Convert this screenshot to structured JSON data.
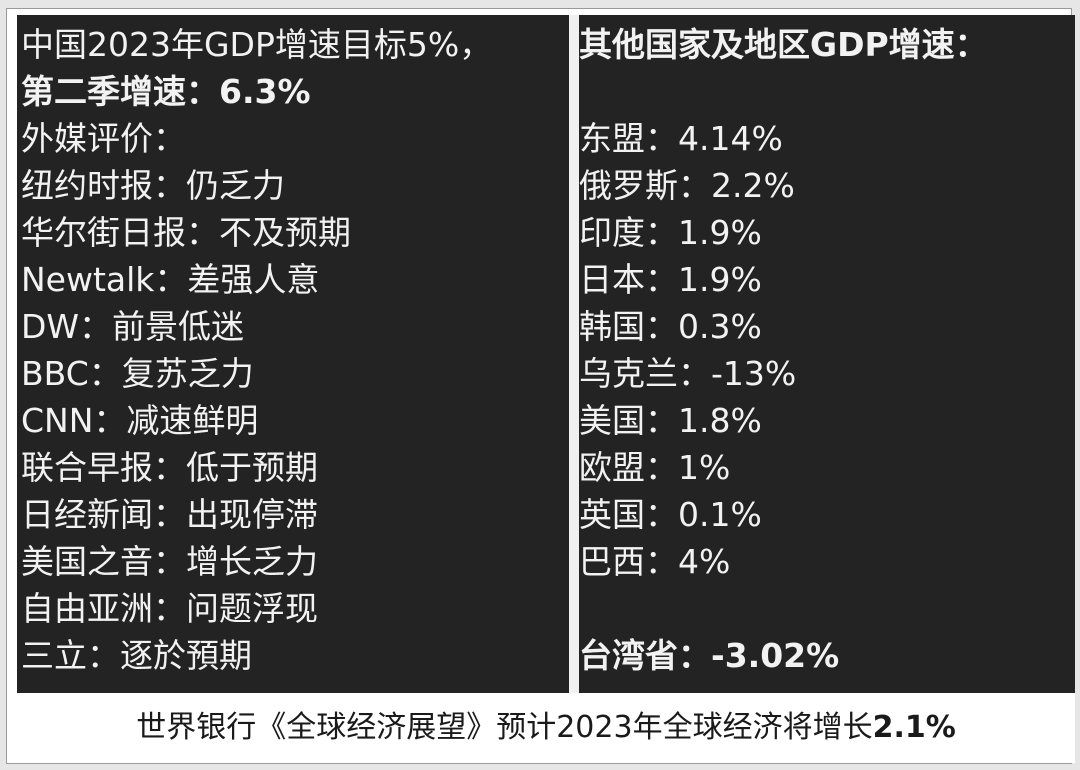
{
  "left": {
    "line1": "中国2023年GDP增速目标5%，",
    "line2": "第二季增速：6.3%",
    "line3": "外媒评价：",
    "reviews": [
      "纽约时报：仍乏力",
      "华尔街日报：不及预期",
      "Newtalk：差强人意",
      "DW：前景低迷",
      "BBC：复苏乏力",
      "CNN：减速鲜明",
      "联合早报：低于预期",
      "日经新闻：出现停滞",
      "美国之音：增长乏力",
      "自由亚洲：问题浮现",
      "三立：逐於預期"
    ]
  },
  "right": {
    "heading": "其他国家及地区GDP增速：",
    "countries": [
      "东盟：4.14%",
      "俄罗斯：2.2%",
      "印度：1.9%",
      "日本：1.9%",
      "韩国：0.3%",
      "乌克兰：-13%",
      "美国：1.8%",
      "欧盟：1%",
      "英国：0.1%",
      "巴西：4%"
    ],
    "highlight": "台湾省：-3.02%"
  },
  "footer": {
    "text": "世界银行《全球经济展望》预计2023年全球经济将增长",
    "value": "2.1%"
  }
}
